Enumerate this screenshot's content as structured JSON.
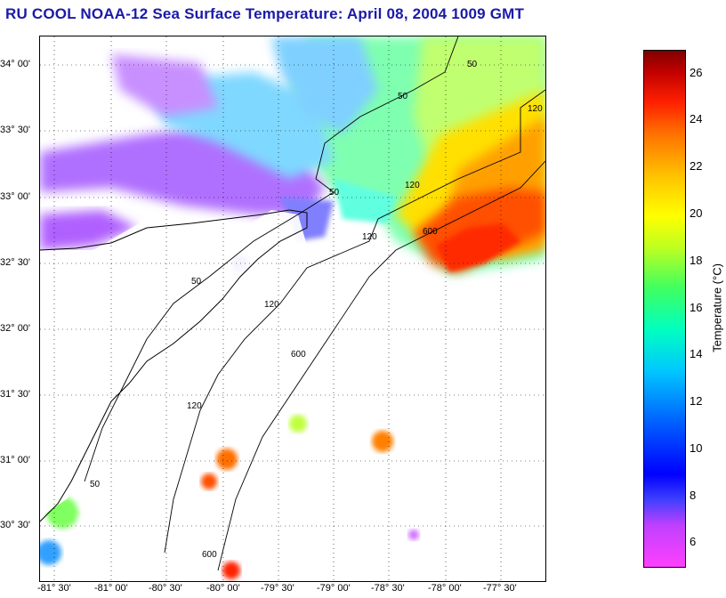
{
  "title": "RU COOL  NOAA-12  Sea Surface Temperature:  April 08, 2004 1009 GMT",
  "map": {
    "lat_labels": [
      "34° 00'",
      "33° 30'",
      "33° 00'",
      "32° 30'",
      "32° 00'",
      "31° 30'",
      "31° 00'",
      "30° 30'"
    ],
    "lon_labels": [
      "-81° 30'",
      "-81° 00'",
      "-80° 30'",
      "-80° 00'",
      "-79° 30'",
      "-79° 00'",
      "-78° 30'",
      "-78° 00'",
      "-77° 30'"
    ],
    "contour_labels": [
      "50",
      "50",
      "50",
      "50",
      "50",
      "120",
      "120",
      "120",
      "120",
      "120",
      "600",
      "600",
      "600"
    ],
    "grid": "dotted"
  },
  "colorbar": {
    "label": "Temperature (°C)",
    "ticks": [
      "26",
      "24",
      "22",
      "20",
      "18",
      "16",
      "14",
      "12",
      "10",
      "8",
      "6"
    ],
    "range": [
      5,
      27
    ]
  },
  "colors": {
    "title": "#1a1aa8",
    "land": "#ffffff",
    "cold": "#ff40ff",
    "warm": "#ff3000"
  }
}
